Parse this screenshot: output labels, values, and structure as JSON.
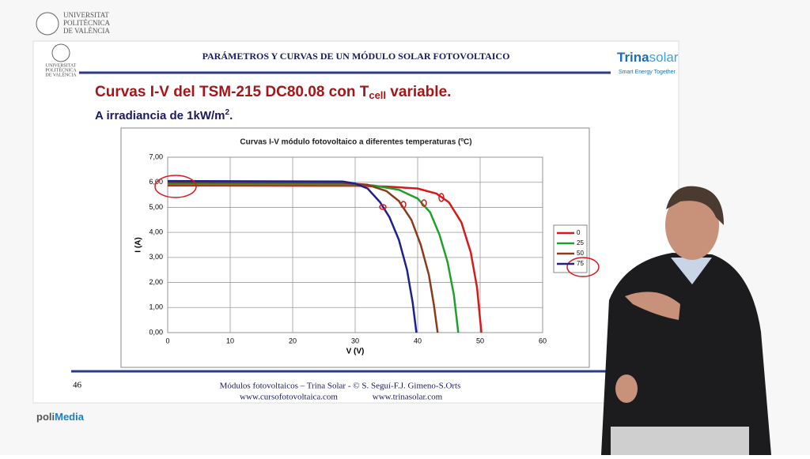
{
  "top_logo": {
    "lines": [
      "UNIVERSITAT",
      "POLITÈCNICA",
      "DE VALÈNCIA"
    ]
  },
  "slide": {
    "header": "PARÁMETROS Y CURVAS DE UN MÓDULO SOLAR FOTOVOLTAICO",
    "small_logo": [
      "UNIVERSITAT",
      "POLITÈCNICA",
      "DE VALÈNCIA"
    ],
    "brand": {
      "part1": "Trina",
      "part2": "solar",
      "tagline": "Smart Energy Together"
    },
    "heading": {
      "main": "Curvas I-V del TSM-215 DC80.08 con T",
      "sub": "cell",
      "end": " variable."
    },
    "subheading": {
      "main": "A irradiancia de 1kW/m",
      "sup": "2",
      "end": "."
    },
    "page_number": "46",
    "footer": {
      "line1": "Módulos fotovoltaicos – Trina Solar - © S. Seguí-F.J. Gimeno-S.Orts",
      "url1": "www.cursofotovoltaica.com",
      "url2": "www.trinasolar.com"
    }
  },
  "watermark": {
    "part1": "poli",
    "part2": "Media"
  },
  "chart_data": {
    "type": "line",
    "title": "Curvas I-V módulo fotovoltaico a diferentes temperaturas (ºC)",
    "x_label": "V (V)",
    "y_label": "I (A)",
    "grid": true,
    "legend": "right",
    "xlim": [
      0,
      60
    ],
    "xticks": [
      0,
      10,
      20,
      30,
      40,
      50,
      60
    ],
    "ylim": [
      0,
      7
    ],
    "yticks": [
      {
        "value": 0,
        "label": "0,00"
      },
      {
        "value": 1,
        "label": "1,00"
      },
      {
        "value": 2,
        "label": "2,00"
      },
      {
        "value": 3,
        "label": "3,00"
      },
      {
        "value": 4,
        "label": "4,00"
      },
      {
        "value": 5,
        "label": "5,00"
      },
      {
        "value": 6,
        "label": "6,00"
      },
      {
        "value": 7,
        "label": "7,00"
      }
    ],
    "series": [
      {
        "name": "0",
        "color": "#d7191c",
        "x": [
          0,
          30,
          35,
          40,
          43,
          45,
          47,
          48.5,
          49.5,
          50.2
        ],
        "values": [
          5.87,
          5.86,
          5.83,
          5.75,
          5.55,
          5.2,
          4.4,
          3.2,
          1.8,
          0
        ]
      },
      {
        "name": "25",
        "color": "#1fa02c",
        "x": [
          0,
          30,
          33,
          37,
          40,
          42,
          43.5,
          44.8,
          45.8,
          46.5
        ],
        "values": [
          5.93,
          5.92,
          5.87,
          5.7,
          5.35,
          4.8,
          3.9,
          2.8,
          1.5,
          0
        ]
      },
      {
        "name": "50",
        "color": "#8b3a1a",
        "x": [
          0,
          28,
          32,
          35,
          37,
          39,
          40.5,
          41.8,
          42.6,
          43.2
        ],
        "values": [
          5.99,
          5.98,
          5.9,
          5.65,
          5.25,
          4.5,
          3.5,
          2.3,
          1.1,
          0
        ]
      },
      {
        "name": "75",
        "color": "#1f1f8f",
        "x": [
          0,
          28,
          30,
          32,
          34,
          35.5,
          37,
          38.3,
          39.2,
          39.8
        ],
        "values": [
          6.05,
          6.03,
          5.95,
          5.75,
          5.2,
          4.6,
          3.7,
          2.5,
          1.2,
          0
        ]
      }
    ]
  }
}
